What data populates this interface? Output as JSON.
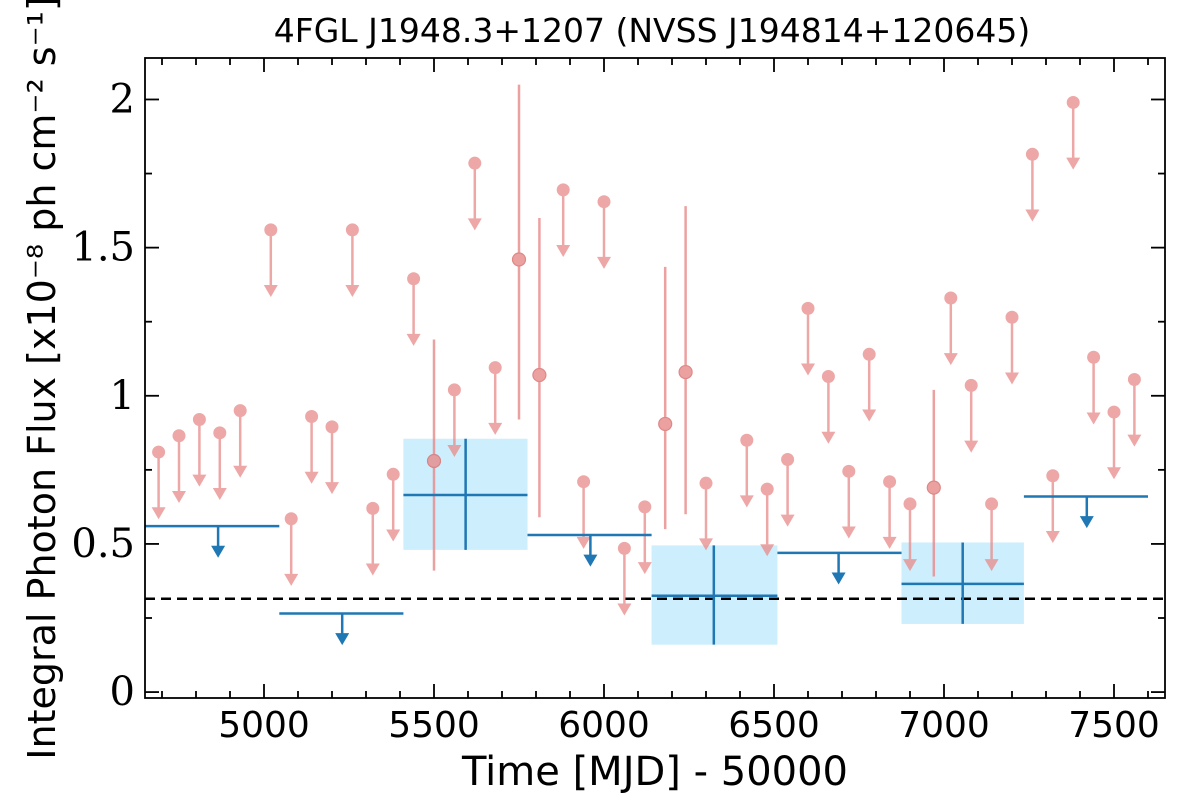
{
  "chart_data": {
    "type": "scatter",
    "title": "4FGL J1948.3+1207 (NVSS J194814+120645)",
    "xlabel": "Time [MJD] - 50000",
    "ylabel": "Integral Photon Flux [x10⁻⁸ ph cm⁻² s⁻¹]",
    "xlim": [
      4650,
      7650
    ],
    "ylim": [
      -0.02,
      2.14
    ],
    "xticks": [
      5000,
      5500,
      6000,
      6500,
      7000,
      7500
    ],
    "xtick_labels": [
      "5000",
      "5500",
      "6000",
      "6500",
      "7000",
      "7500"
    ],
    "yticks": [
      0,
      0.5,
      1,
      1.5,
      2
    ],
    "ytick_labels": [
      "0",
      "0.5",
      "1",
      "1.5",
      "2"
    ],
    "reference_line": {
      "y": 0.315,
      "style": "dashed",
      "color": "#000000"
    },
    "colors": {
      "monthly": "#e88a8a",
      "yearly": "#1f77b4",
      "yearly_band": "#cdeefc",
      "reference": "#000000"
    },
    "series": [
      {
        "name": "monthly_upper_limits",
        "marker": "circle-with-down-arrow",
        "x": [
          4690,
          4750,
          4810,
          4870,
          4930,
          5020,
          5080,
          5140,
          5200,
          5260,
          5320,
          5380,
          5440,
          5560,
          5620,
          5680,
          5880,
          5940,
          6000,
          6060,
          6120,
          6300,
          6420,
          6480,
          6540,
          6600,
          6660,
          6720,
          6780,
          6840,
          6900,
          7020,
          7080,
          7140,
          7200,
          7260,
          7320,
          7380,
          7440,
          7500,
          7560
        ],
        "y": [
          0.81,
          0.865,
          0.92,
          0.875,
          0.95,
          1.56,
          0.585,
          0.93,
          0.895,
          1.56,
          0.62,
          0.735,
          1.395,
          1.02,
          1.785,
          1.095,
          1.695,
          0.71,
          1.655,
          0.485,
          0.625,
          0.705,
          0.85,
          0.685,
          0.785,
          1.295,
          1.065,
          0.745,
          1.14,
          0.71,
          0.635,
          1.33,
          1.035,
          0.635,
          1.265,
          1.815,
          0.73,
          1.99,
          1.13,
          0.945,
          1.055
        ],
        "arrow_to": [
          0.59,
          0.645,
          0.7,
          0.655,
          0.73,
          1.34,
          0.365,
          0.71,
          0.675,
          1.34,
          0.4,
          0.515,
          1.175,
          0.8,
          1.565,
          0.875,
          1.475,
          0.49,
          1.435,
          0.265,
          0.405,
          0.485,
          0.63,
          0.465,
          0.565,
          1.075,
          0.845,
          0.525,
          0.92,
          0.49,
          0.415,
          1.11,
          0.815,
          0.415,
          1.045,
          1.595,
          0.51,
          1.77,
          0.91,
          0.725,
          0.835
        ]
      },
      {
        "name": "monthly_detections",
        "marker": "circle-with-error-bar",
        "x": [
          5500,
          5750,
          5810,
          6180,
          6240,
          6970
        ],
        "y": [
          0.78,
          1.46,
          1.07,
          0.905,
          1.08,
          0.69
        ],
        "yerr_low": [
          0.41,
          0.92,
          0.59,
          0.55,
          0.6,
          0.39
        ],
        "yerr_high": [
          1.19,
          2.05,
          1.6,
          1.435,
          1.64,
          1.02
        ]
      },
      {
        "name": "yearly_upper_limits",
        "marker": "horizontal-bin-with-down-arrow",
        "x_start": [
          4650,
          5045,
          5775,
          6510,
          7235
        ],
        "x_end": [
          5045,
          5410,
          6140,
          6875,
          7600
        ],
        "x_center": [
          4865,
          5230,
          5960,
          6690,
          7420
        ],
        "y": [
          0.56,
          0.265,
          0.53,
          0.47,
          0.66
        ],
        "arrow_to": [
          0.46,
          0.165,
          0.43,
          0.37,
          0.56
        ]
      },
      {
        "name": "yearly_detections",
        "marker": "cross-with-band",
        "x": [
          5593,
          6323,
          7055
        ],
        "x_start": [
          5410,
          6140,
          6875
        ],
        "x_end": [
          5775,
          6510,
          7235
        ],
        "y": [
          0.665,
          0.325,
          0.365
        ],
        "y_low": [
          0.48,
          0.16,
          0.23
        ],
        "y_high": [
          0.855,
          0.495,
          0.505
        ]
      }
    ]
  }
}
